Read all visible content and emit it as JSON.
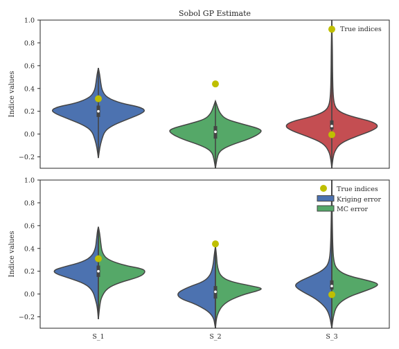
{
  "colors": {
    "blue": "#4c72b0",
    "green": "#55a868",
    "red": "#c44e52",
    "marker": "#bfbf00",
    "line": "#444444"
  },
  "chart_data": [
    {
      "type": "violin",
      "title": "Sobol GP Estimate",
      "ylabel": "Indice values",
      "ylim": [
        -0.3,
        1.0
      ],
      "yticks": [
        "−0.2",
        "0.0",
        "0.2",
        "0.4",
        "0.6",
        "0.8",
        "1.0"
      ],
      "ytick_values": [
        -0.2,
        0.0,
        0.2,
        0.4,
        0.6,
        0.8,
        1.0
      ],
      "categories": [
        "S_1",
        "S_2",
        "S_3"
      ],
      "show_xticklabels": false,
      "legend_position": "upper-right",
      "legend": [
        {
          "label": "True indices",
          "kind": "marker"
        }
      ],
      "violins": [
        {
          "category": "S_1",
          "color_key": "blue",
          "min": -0.21,
          "max": 0.58,
          "q1": 0.15,
          "median": 0.2,
          "q3": 0.25
        },
        {
          "category": "S_2",
          "color_key": "green",
          "min": -0.3,
          "max": 0.29,
          "q1": -0.04,
          "median": 0.02,
          "q3": 0.07
        },
        {
          "category": "S_3",
          "color_key": "red",
          "min": -0.3,
          "max": 1.0,
          "q1": 0.04,
          "median": 0.07,
          "q3": 0.12
        }
      ],
      "true_indices": [
        {
          "category": "S_1",
          "values": [
            0.31
          ]
        },
        {
          "category": "S_2",
          "values": [
            0.44
          ]
        },
        {
          "category": "S_3",
          "values": [
            0.92,
            -0.005
          ]
        }
      ]
    },
    {
      "type": "split-violin",
      "ylabel": "Indice values",
      "ylim": [
        -0.3,
        1.0
      ],
      "yticks": [
        "−0.2",
        "0.0",
        "0.2",
        "0.4",
        "0.6",
        "0.8",
        "1.0"
      ],
      "ytick_values": [
        -0.2,
        0.0,
        0.2,
        0.4,
        0.6,
        0.8,
        1.0
      ],
      "categories": [
        "S_1",
        "S_2",
        "S_3"
      ],
      "show_xticklabels": true,
      "legend_position": "upper-right",
      "legend": [
        {
          "label": "True indices",
          "kind": "marker"
        },
        {
          "label": "Kriging error",
          "kind": "patch",
          "color_key": "blue"
        },
        {
          "label": "MC error",
          "kind": "patch",
          "color_key": "green"
        }
      ],
      "violins": [
        {
          "category": "S_1",
          "min": -0.22,
          "max": 0.59,
          "q1": 0.15,
          "median": 0.2,
          "q3": 0.25
        },
        {
          "category": "S_2",
          "min": -0.3,
          "max": 0.42,
          "q1": -0.04,
          "median": 0.02,
          "q3": 0.07
        },
        {
          "category": "S_3",
          "min": -0.3,
          "max": 1.0,
          "q1": 0.04,
          "median": 0.07,
          "q3": 0.12
        }
      ],
      "true_indices": [
        {
          "category": "S_1",
          "values": [
            0.31
          ]
        },
        {
          "category": "S_2",
          "values": [
            0.44
          ]
        },
        {
          "category": "S_3",
          "values": [
            -0.005
          ]
        }
      ]
    }
  ]
}
